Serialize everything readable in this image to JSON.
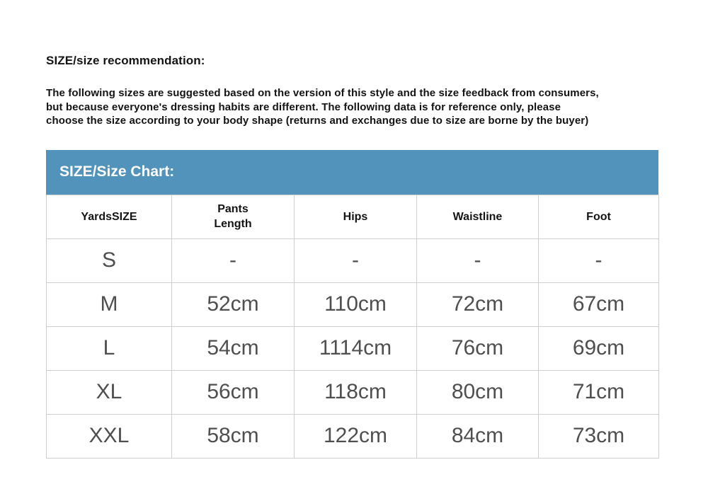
{
  "intro": {
    "heading": "SIZE/size recommendation:",
    "lines": [
      "The following sizes are suggested based on the version of this style and the size feedback from consumers,",
      "but because everyone's dressing habits are different. The following data is for reference only, please",
      "choose the size according to your body shape (returns and exchanges due to size are borne by the buyer)"
    ]
  },
  "size_chart": {
    "title": "SIZE/Size Chart:"
  },
  "size_table": {
    "type": "table",
    "columns": [
      "YardsSIZE",
      "Pants\nLength",
      "Hips",
      "Waistline",
      "Foot"
    ],
    "rows": [
      [
        "S",
        "-",
        "-",
        "-",
        "-"
      ],
      [
        "M",
        "52cm",
        "110cm",
        "72cm",
        "67cm"
      ],
      [
        "L",
        "54cm",
        "1114cm",
        "76cm",
        "69cm"
      ],
      [
        "XL",
        "56cm",
        "118cm",
        "80cm",
        "71cm"
      ],
      [
        "XXL",
        "58cm",
        "122cm",
        "84cm",
        "73cm"
      ]
    ]
  },
  "colors": {
    "header_bar_bg": "#5193bb",
    "header_bar_text": "#ffffff",
    "table_border": "#cfcfcf",
    "cell_text": "#4f4f4f",
    "heading_text": "#141414"
  }
}
